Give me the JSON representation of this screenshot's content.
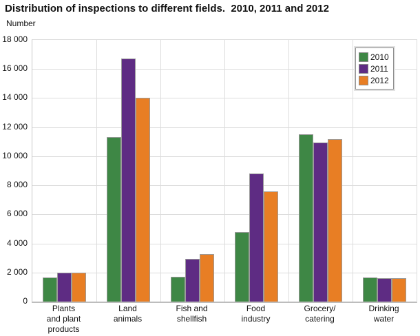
{
  "chart_data": {
    "type": "bar",
    "title": "Distribution of inspections to different fields.  2010, 2011 and 2012",
    "subtitle": "Number",
    "categories": [
      [
        "Plants",
        "and plant",
        "products"
      ],
      [
        "Land",
        "animals"
      ],
      [
        "Fish and",
        "shellfish"
      ],
      [
        "Food",
        "industry"
      ],
      [
        "Grocery/",
        "catering"
      ],
      [
        "Drinking",
        "water"
      ]
    ],
    "series": [
      {
        "name": "2010",
        "color": "#3e8745",
        "values": [
          1650,
          11300,
          1700,
          4800,
          11500,
          1650
        ]
      },
      {
        "name": "2011",
        "color": "#5e2c83",
        "values": [
          2000,
          16700,
          2950,
          8800,
          10950,
          1600
        ]
      },
      {
        "name": "2012",
        "color": "#e87e24",
        "values": [
          2000,
          14000,
          3250,
          7600,
          11200,
          1600
        ]
      }
    ],
    "ylim": [
      0,
      18000
    ],
    "ytick_step": 2000,
    "ytick_labels": [
      "0",
      "2 000",
      "4 000",
      "6 000",
      "8 000",
      "10 000",
      "12 000",
      "14 000",
      "16 000",
      "18 000"
    ],
    "grid": true,
    "legend_position": "top-right",
    "colors": {
      "grid": "#dcdcdc",
      "axis": "#bdbdbd",
      "bar_border": "#9b9b9b",
      "text": "#111111"
    }
  }
}
